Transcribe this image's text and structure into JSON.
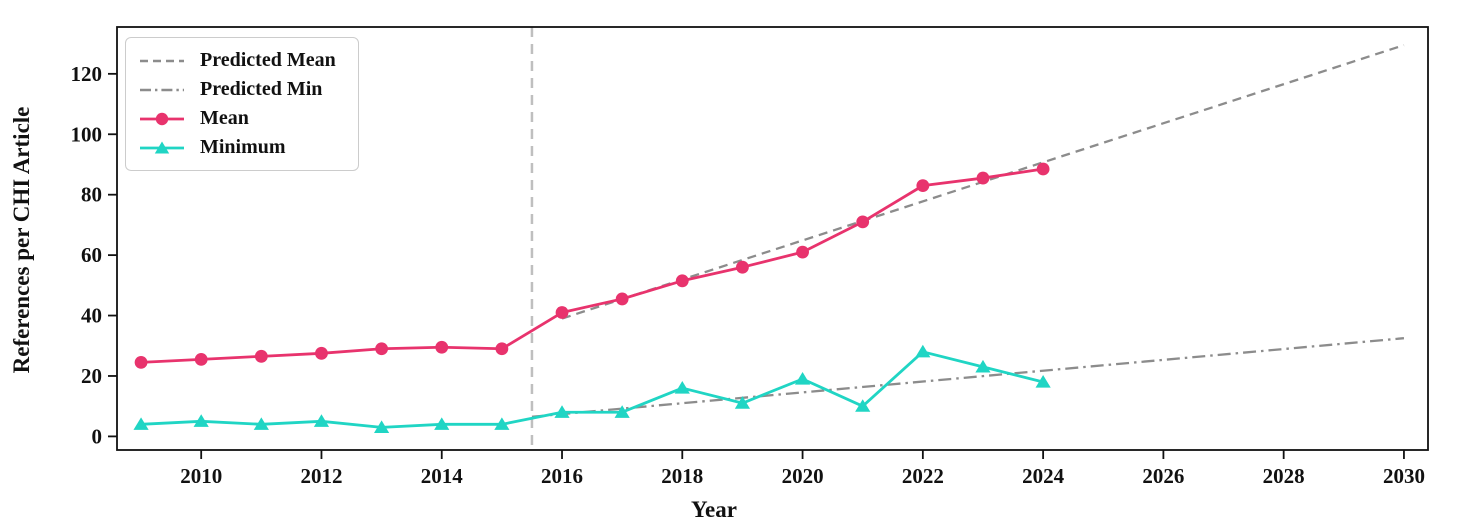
{
  "chart_data": {
    "type": "line",
    "title": "",
    "xlabel": "Year",
    "ylabel": "References per CHI Article",
    "xlim": [
      2008.6,
      2030.4
    ],
    "ylim": [
      -4.5,
      135.5
    ],
    "xticks": [
      2010,
      2012,
      2014,
      2016,
      2018,
      2020,
      2022,
      2024,
      2026,
      2028,
      2030
    ],
    "yticks": [
      0,
      20,
      40,
      60,
      80,
      100,
      120
    ],
    "grid": false,
    "prediction_boundary_x": 2015.5,
    "legend_position": "upper-left",
    "colors": {
      "mean": "#e8336d",
      "minimum": "#20d5c4",
      "predicted": "#8c8c8c",
      "boundary_line": "#bfbfbf",
      "axis": "#111111"
    },
    "series": [
      {
        "name": "Predicted Mean",
        "style": "dashed",
        "marker": "none",
        "color": "#8c8c8c",
        "x": [
          2016,
          2030
        ],
        "y": [
          39,
          129.5
        ]
      },
      {
        "name": "Predicted Min",
        "style": "dashdot",
        "marker": "none",
        "color": "#8c8c8c",
        "x": [
          2015.5,
          2030
        ],
        "y": [
          6.5,
          32.5
        ]
      },
      {
        "name": "Mean",
        "style": "solid",
        "marker": "circle",
        "color": "#e8336d",
        "x": [
          2009,
          2010,
          2011,
          2012,
          2013,
          2014,
          2015,
          2016,
          2017,
          2018,
          2019,
          2020,
          2021,
          2022,
          2023,
          2024
        ],
        "y": [
          24.5,
          25.5,
          26.5,
          27.5,
          29,
          29.5,
          29,
          41,
          45.5,
          51.5,
          56,
          61,
          71,
          83,
          85.5,
          88.5
        ]
      },
      {
        "name": "Minimum",
        "style": "solid",
        "marker": "triangle",
        "color": "#20d5c4",
        "x": [
          2009,
          2010,
          2011,
          2012,
          2013,
          2014,
          2015,
          2016,
          2017,
          2018,
          2019,
          2020,
          2021,
          2022,
          2023,
          2024
        ],
        "y": [
          4,
          5,
          4,
          5,
          3,
          4,
          4,
          8,
          8,
          16,
          11,
          19,
          10,
          28,
          23,
          18
        ]
      }
    ]
  }
}
